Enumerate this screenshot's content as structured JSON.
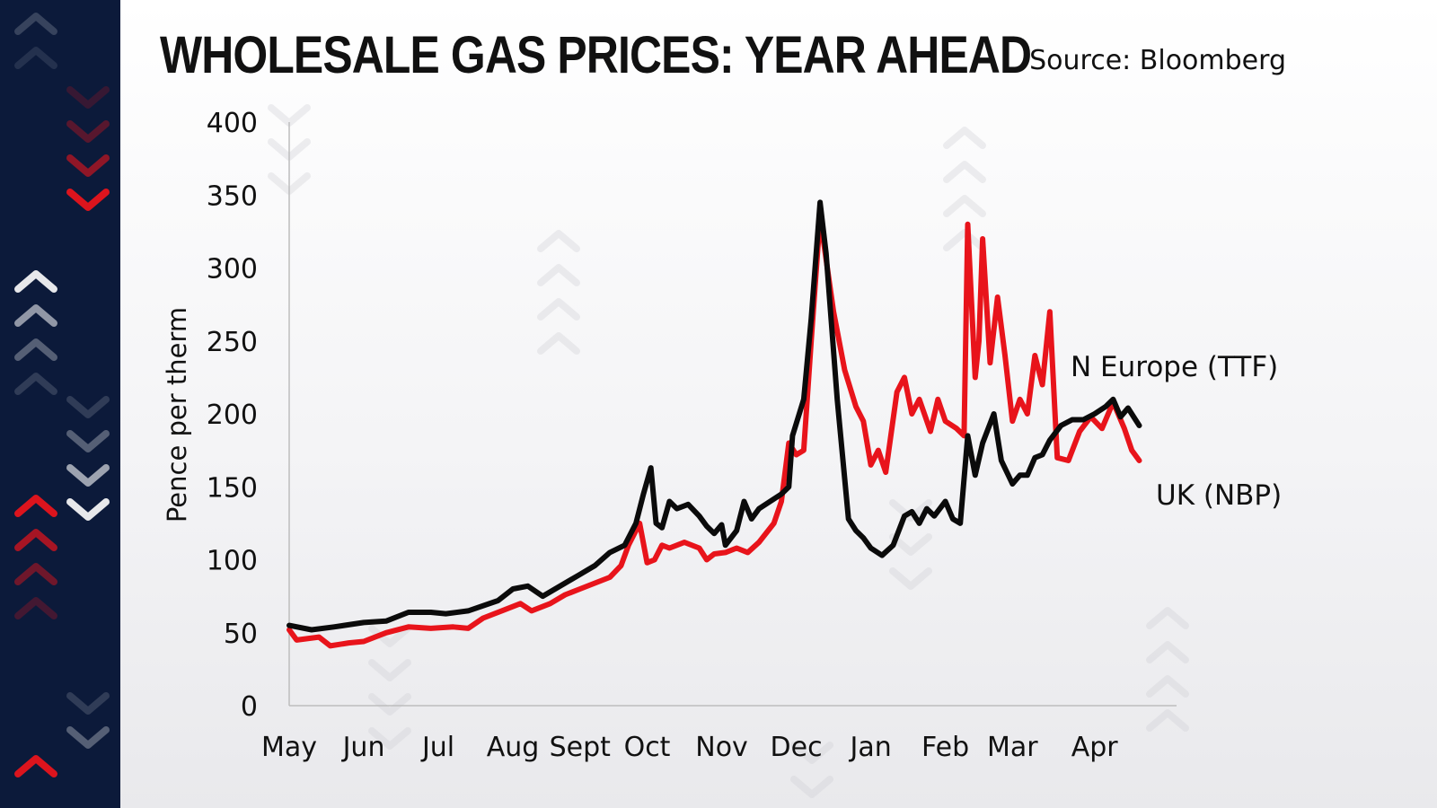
{
  "header": {
    "title": "WHOLESALE GAS PRICES: YEAR AHEAD",
    "source": "Source: Bloomberg"
  },
  "colors": {
    "strip": "#0c1a3a",
    "accent_red": "#e8141b",
    "line_black": "#0b0b0b"
  },
  "chart_data": {
    "type": "line",
    "title": "WHOLESALE GAS PRICES: YEAR AHEAD",
    "ylabel": "Pence per therm",
    "xlabel": "",
    "ylim": [
      0,
      400
    ],
    "yticks": [
      0,
      50,
      100,
      150,
      200,
      250,
      300,
      350,
      400
    ],
    "x_months": [
      "May",
      "Jun",
      "Jul",
      "Aug",
      "Sept",
      "Oct",
      "Nov",
      "Dec",
      "Jan",
      "Feb",
      "Mar",
      "Apr"
    ],
    "x_month_positions": [
      0,
      1,
      2,
      3,
      3.9,
      4.8,
      5.8,
      6.8,
      7.8,
      8.8,
      9.7,
      10.8
    ],
    "xlim": [
      0,
      11.9
    ],
    "grid": false,
    "legend": "inline-labels",
    "series": [
      {
        "name": "N Europe (TTF)",
        "color": "#0b0b0b",
        "points": [
          [
            0,
            55
          ],
          [
            0.3,
            52
          ],
          [
            0.6,
            54
          ],
          [
            1.0,
            57
          ],
          [
            1.3,
            58
          ],
          [
            1.6,
            64
          ],
          [
            1.9,
            64
          ],
          [
            2.1,
            63
          ],
          [
            2.4,
            65
          ],
          [
            2.8,
            72
          ],
          [
            3.0,
            80
          ],
          [
            3.2,
            82
          ],
          [
            3.4,
            75
          ],
          [
            3.7,
            84
          ],
          [
            3.9,
            90
          ],
          [
            4.1,
            96
          ],
          [
            4.3,
            105
          ],
          [
            4.5,
            110
          ],
          [
            4.65,
            125
          ],
          [
            4.75,
            145
          ],
          [
            4.85,
            163
          ],
          [
            4.92,
            125
          ],
          [
            5.0,
            122
          ],
          [
            5.1,
            140
          ],
          [
            5.2,
            135
          ],
          [
            5.35,
            138
          ],
          [
            5.5,
            130
          ],
          [
            5.6,
            123
          ],
          [
            5.7,
            118
          ],
          [
            5.8,
            124
          ],
          [
            5.85,
            110
          ],
          [
            6.0,
            120
          ],
          [
            6.1,
            140
          ],
          [
            6.2,
            128
          ],
          [
            6.3,
            135
          ],
          [
            6.45,
            140
          ],
          [
            6.6,
            145
          ],
          [
            6.7,
            150
          ],
          [
            6.75,
            185
          ],
          [
            6.9,
            210
          ],
          [
            7.0,
            265
          ],
          [
            7.12,
            345
          ],
          [
            7.2,
            310
          ],
          [
            7.35,
            210
          ],
          [
            7.5,
            128
          ],
          [
            7.6,
            120
          ],
          [
            7.7,
            115
          ],
          [
            7.8,
            108
          ],
          [
            7.95,
            103
          ],
          [
            8.1,
            110
          ],
          [
            8.25,
            130
          ],
          [
            8.35,
            133
          ],
          [
            8.45,
            125
          ],
          [
            8.55,
            135
          ],
          [
            8.65,
            130
          ],
          [
            8.8,
            140
          ],
          [
            8.9,
            128
          ],
          [
            9.0,
            125
          ],
          [
            9.1,
            185
          ],
          [
            9.2,
            158
          ],
          [
            9.3,
            180
          ],
          [
            9.45,
            200
          ],
          [
            9.55,
            168
          ],
          [
            9.7,
            152
          ],
          [
            9.8,
            158
          ],
          [
            9.9,
            158
          ],
          [
            10.0,
            170
          ],
          [
            10.1,
            172
          ],
          [
            10.2,
            182
          ],
          [
            10.35,
            192
          ],
          [
            10.5,
            196
          ],
          [
            10.65,
            196
          ],
          [
            10.8,
            200
          ],
          [
            10.95,
            205
          ],
          [
            11.05,
            210
          ],
          [
            11.15,
            198
          ],
          [
            11.25,
            204
          ],
          [
            11.35,
            196
          ],
          [
            11.4,
            192
          ]
        ]
      },
      {
        "name": "UK (NBP)",
        "color": "#e8141b",
        "points": [
          [
            0,
            52
          ],
          [
            0.1,
            45
          ],
          [
            0.4,
            47
          ],
          [
            0.55,
            41
          ],
          [
            0.8,
            43
          ],
          [
            1.0,
            44
          ],
          [
            1.3,
            50
          ],
          [
            1.6,
            54
          ],
          [
            1.9,
            53
          ],
          [
            2.2,
            54
          ],
          [
            2.4,
            53
          ],
          [
            2.6,
            60
          ],
          [
            2.9,
            66
          ],
          [
            3.1,
            70
          ],
          [
            3.25,
            65
          ],
          [
            3.5,
            70
          ],
          [
            3.7,
            76
          ],
          [
            3.9,
            80
          ],
          [
            4.1,
            84
          ],
          [
            4.3,
            88
          ],
          [
            4.45,
            96
          ],
          [
            4.55,
            110
          ],
          [
            4.7,
            125
          ],
          [
            4.8,
            98
          ],
          [
            4.9,
            100
          ],
          [
            5.0,
            110
          ],
          [
            5.1,
            108
          ],
          [
            5.3,
            112
          ],
          [
            5.5,
            108
          ],
          [
            5.6,
            100
          ],
          [
            5.7,
            104
          ],
          [
            5.85,
            105
          ],
          [
            6.0,
            108
          ],
          [
            6.15,
            105
          ],
          [
            6.3,
            112
          ],
          [
            6.5,
            125
          ],
          [
            6.6,
            140
          ],
          [
            6.7,
            180
          ],
          [
            6.8,
            172
          ],
          [
            6.9,
            175
          ],
          [
            7.0,
            250
          ],
          [
            7.12,
            335
          ],
          [
            7.3,
            270
          ],
          [
            7.45,
            230
          ],
          [
            7.6,
            205
          ],
          [
            7.7,
            195
          ],
          [
            7.8,
            165
          ],
          [
            7.9,
            175
          ],
          [
            8.0,
            160
          ],
          [
            8.15,
            215
          ],
          [
            8.25,
            225
          ],
          [
            8.35,
            200
          ],
          [
            8.45,
            210
          ],
          [
            8.6,
            188
          ],
          [
            8.7,
            210
          ],
          [
            8.8,
            195
          ],
          [
            8.95,
            190
          ],
          [
            9.05,
            185
          ],
          [
            9.1,
            330
          ],
          [
            9.2,
            225
          ],
          [
            9.25,
            250
          ],
          [
            9.3,
            320
          ],
          [
            9.4,
            235
          ],
          [
            9.5,
            280
          ],
          [
            9.6,
            240
          ],
          [
            9.7,
            195
          ],
          [
            9.8,
            210
          ],
          [
            9.9,
            200
          ],
          [
            10.0,
            240
          ],
          [
            10.1,
            220
          ],
          [
            10.2,
            270
          ],
          [
            10.3,
            170
          ],
          [
            10.45,
            168
          ],
          [
            10.6,
            188
          ],
          [
            10.75,
            198
          ],
          [
            10.9,
            190
          ],
          [
            11.05,
            208
          ],
          [
            11.2,
            190
          ],
          [
            11.3,
            175
          ],
          [
            11.4,
            168
          ]
        ]
      }
    ],
    "series_labels": {
      "ttf": "N Europe (TTF)",
      "nbp": "UK (NBP)"
    }
  }
}
